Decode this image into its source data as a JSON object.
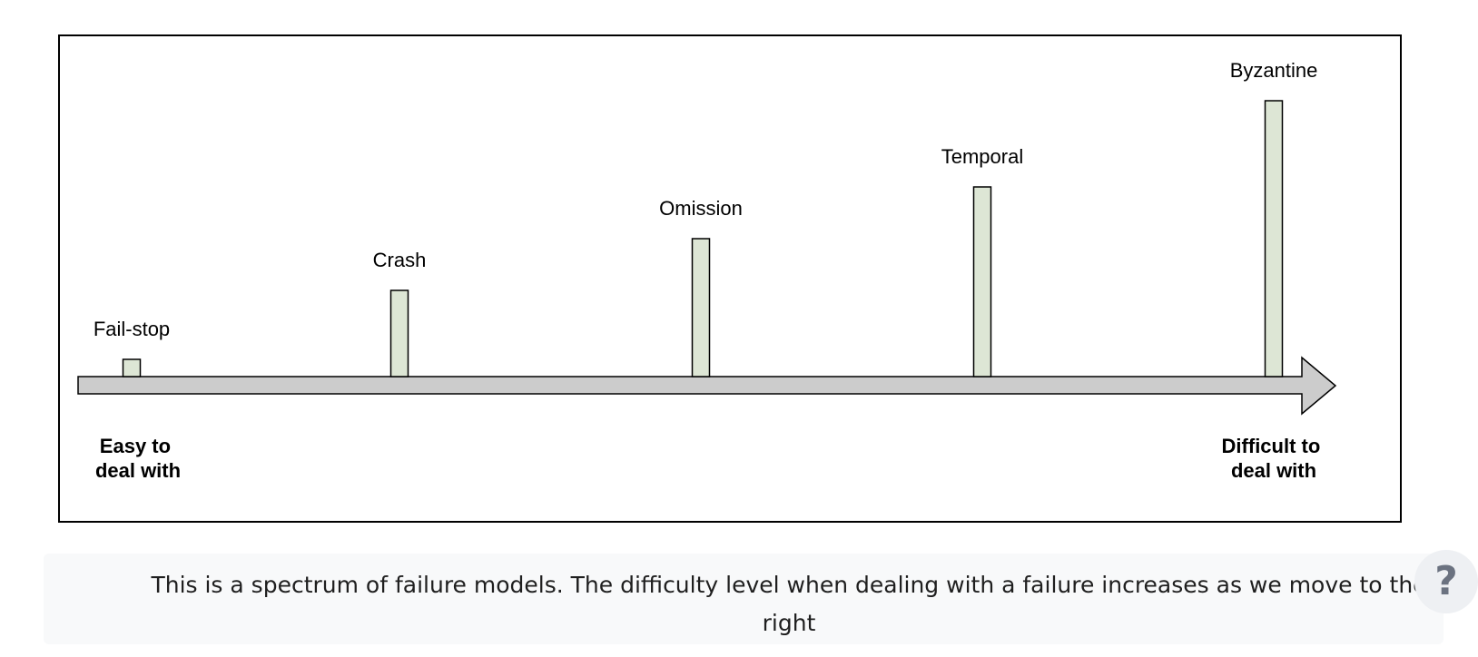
{
  "diagram": {
    "models": [
      {
        "label": "Fail-stop",
        "level": 1
      },
      {
        "label": "Crash",
        "level": 5
      },
      {
        "label": "Omission",
        "level": 8
      },
      {
        "label": "Temporal",
        "level": 11
      },
      {
        "label": "Byzantine",
        "level": 16
      }
    ],
    "left_end_label": [
      "Easy to",
      "deal with"
    ],
    "right_end_label": [
      "Difficult to",
      "deal with"
    ],
    "colors": {
      "bar_fill": "#dde6d5",
      "bar_stroke": "#000000",
      "arrow_fill": "#cccccc",
      "arrow_stroke": "#000000"
    }
  },
  "caption": {
    "text": "This is a spectrum of failure models. The difficulty level when dealing with a failure increases as we move to the right"
  },
  "help": {
    "icon": "question-mark-icon",
    "glyph": "?"
  }
}
